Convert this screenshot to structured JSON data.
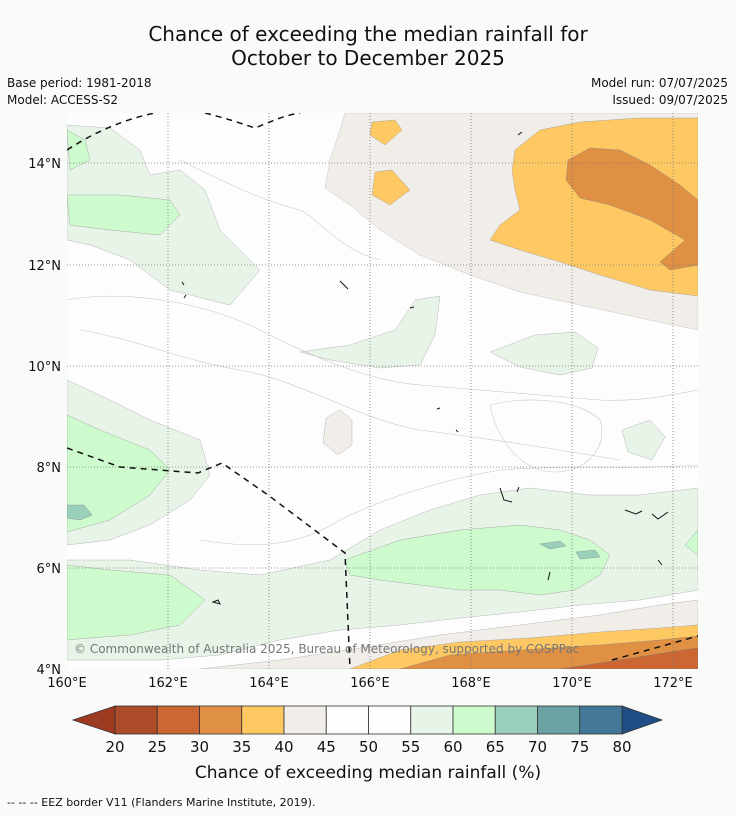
{
  "title": {
    "line1": "Chance of exceeding the median rainfall for",
    "line2": "October to December 2025"
  },
  "meta_left": {
    "base_period": "Base period: 1981-2018",
    "model": "Model: ACCESS-S2"
  },
  "meta_right": {
    "model_run": "Model run: 07/07/2025",
    "issued": "Issued: 09/07/2025"
  },
  "map": {
    "lat_labels": [
      "14°N",
      "12°N",
      "10°N",
      "8°N",
      "6°N",
      "4°N"
    ],
    "lon_labels": [
      "160°E",
      "162°E",
      "164°E",
      "166°E",
      "168°E",
      "170°E",
      "172°E"
    ],
    "copyright": "© Commonwealth of Australia 2025, Bureau of Meteorology, supported by COSPPac"
  },
  "colorbar": {
    "ticks": [
      "20",
      "25",
      "30",
      "35",
      "40",
      "45",
      "50",
      "55",
      "60",
      "65",
      "70",
      "75",
      "80"
    ],
    "colors": [
      "#ac4b27",
      "#cc6633",
      "#e09043",
      "#fec863",
      "#f1ede9",
      "#fdfdfd",
      "#fdfdfd",
      "#e8f4e8",
      "#cdfbcd",
      "#9acfbb",
      "#6ba3a4",
      "#437997"
    ],
    "low_color": "#9c3b20",
    "high_color": "#1e4e85",
    "label": "Chance of exceeding median rainfall (%)"
  },
  "footnote": "-- -- -- EEZ border V11 (Flanders Marine Institute, 2019)."
}
